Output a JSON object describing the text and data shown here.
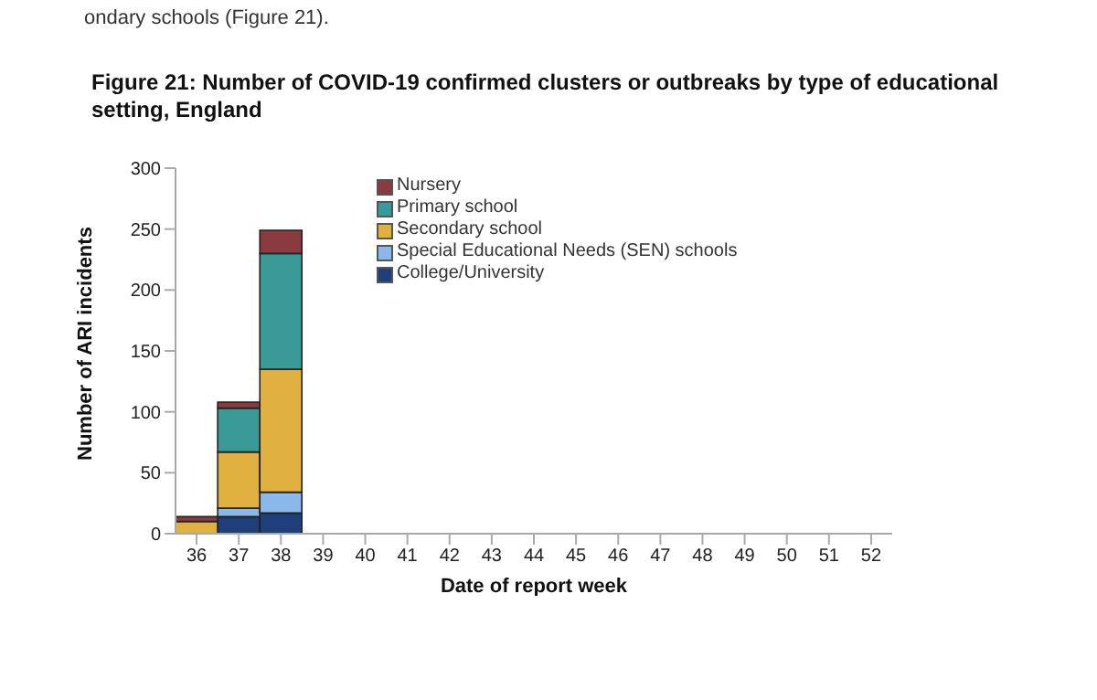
{
  "chart_data": {
    "type": "bar",
    "title": "Figure 21: Number of COVID-19 confirmed clusters or outbreaks by type of educational setting, England",
    "xlabel": "Date of report week",
    "ylabel": "Number of ARI incidents",
    "annotations": [
      "ondary schools (Figure 21)."
    ],
    "categories": [
      "36",
      "37",
      "38",
      "39",
      "40",
      "41",
      "42",
      "43",
      "44",
      "45",
      "46",
      "47",
      "48",
      "49",
      "50",
      "51",
      "52"
    ],
    "stacked": true,
    "ylim": [
      0,
      300
    ],
    "yticks": [
      0,
      50,
      100,
      150,
      200,
      250,
      300
    ],
    "grid": false,
    "legend": "top right",
    "series": [
      {
        "name": "College/University",
        "color": "#1f3f7a",
        "values": [
          0,
          14,
          17,
          null,
          null,
          null,
          null,
          null,
          null,
          null,
          null,
          null,
          null,
          null,
          null,
          null,
          null
        ]
      },
      {
        "name": "Special Educational Needs (SEN) schools",
        "color": "#8ab8e8",
        "values": [
          0,
          7,
          17,
          null,
          null,
          null,
          null,
          null,
          null,
          null,
          null,
          null,
          null,
          null,
          null,
          null,
          null
        ]
      },
      {
        "name": "Secondary school",
        "color": "#e0b040",
        "values": [
          10,
          46,
          101,
          null,
          null,
          null,
          null,
          null,
          null,
          null,
          null,
          null,
          null,
          null,
          null,
          null,
          null
        ]
      },
      {
        "name": "Primary school",
        "color": "#3a9a98",
        "values": [
          0,
          36,
          95,
          null,
          null,
          null,
          null,
          null,
          null,
          null,
          null,
          null,
          null,
          null,
          null,
          null,
          null
        ]
      },
      {
        "name": "Nursery",
        "color": "#8b3a3f",
        "values": [
          4,
          5,
          19,
          null,
          null,
          null,
          null,
          null,
          null,
          null,
          null,
          null,
          null,
          null,
          null,
          null,
          null
        ]
      }
    ]
  }
}
